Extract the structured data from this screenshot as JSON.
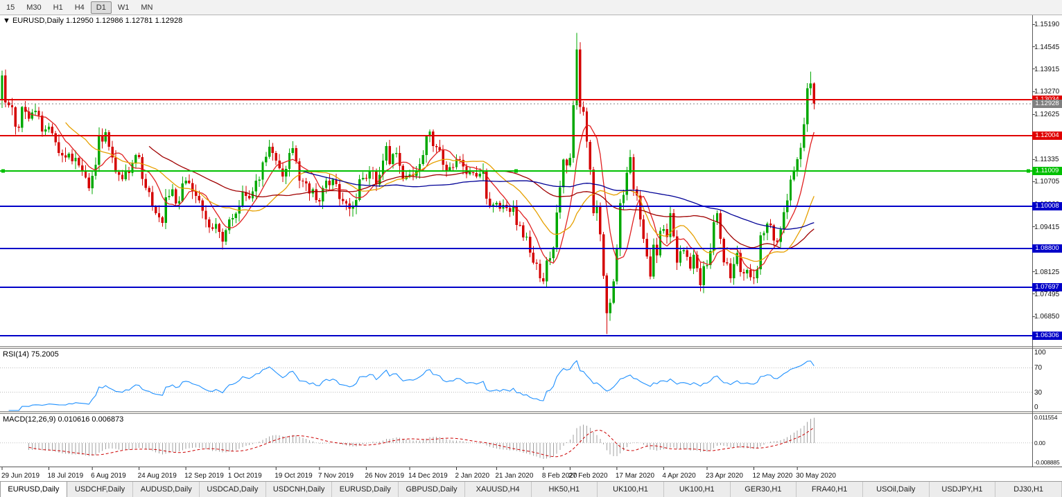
{
  "toolbar": {
    "timeframes": [
      "15",
      "M30",
      "H1",
      "H4",
      "D1",
      "W1",
      "MN"
    ],
    "active": "D1"
  },
  "main_chart": {
    "symbol_marker": "▼",
    "title": "EURUSD,Daily",
    "open": "1.12950",
    "high": "1.12986",
    "low": "1.12781",
    "close": "1.12928",
    "price_axis_ticks": [
      "1.15190",
      "1.14545",
      "1.13915",
      "1.13270",
      "1.12625",
      "1.11980",
      "1.11335",
      "1.10705",
      "1.10060",
      "1.09415",
      "1.08770",
      "1.08125",
      "1.07495",
      "1.06850"
    ],
    "levels": [
      {
        "price": 1.13034,
        "label": "1.13034",
        "color": "#e00000"
      },
      {
        "price": 1.12004,
        "label": "1.12004",
        "color": "#e00000"
      },
      {
        "price": 1.11009,
        "label": "1.11009",
        "color": "#00c000",
        "selected": true
      },
      {
        "price": 1.10008,
        "label": "1.10008",
        "color": "#0000c8"
      },
      {
        "price": 1.088,
        "label": "1.08800",
        "color": "#0000c8"
      },
      {
        "price": 1.07697,
        "label": "1.07697",
        "color": "#0000c8"
      },
      {
        "price": 1.06306,
        "label": "1.06306",
        "color": "#0000c8"
      }
    ],
    "current_price": {
      "price": 1.12928,
      "label": "1.12928",
      "color": "#808080"
    }
  },
  "chart_data": {
    "type": "candlestick",
    "symbol": "EURUSD",
    "timeframe": "Daily",
    "y_range": [
      1.0601,
      1.1545
    ],
    "up_color": "#00a800",
    "down_color": "#d40000",
    "first_open": 1.1305,
    "closes": [
      1.1373,
      1.1296,
      1.1288,
      1.1282,
      1.1227,
      1.1224,
      1.1283,
      1.127,
      1.125,
      1.1268,
      1.1272,
      1.1259,
      1.1213,
      1.1219,
      1.1227,
      1.1208,
      1.1183,
      1.1152,
      1.1145,
      1.1139,
      1.115,
      1.1128,
      1.1138,
      1.1116,
      1.1103,
      1.1082,
      1.1051,
      1.1087,
      1.1118,
      1.1203,
      1.1185,
      1.1211,
      1.117,
      1.1139,
      1.1098,
      1.109,
      1.1077,
      1.11,
      1.1095,
      1.1123,
      1.1146,
      1.114,
      1.1078,
      1.1052,
      1.104,
      1.0999,
      1.098,
      1.0968,
      1.0953,
      1.1026,
      1.103,
      1.1048,
      1.1008,
      1.1015,
      1.1065,
      1.1073,
      1.1066,
      1.1042,
      1.103,
      1.1017,
      1.0987,
      1.0962,
      1.094,
      1.0936,
      1.095,
      1.0927,
      1.0899,
      1.0932,
      1.0962,
      1.0966,
      1.0979,
      1.1,
      1.104,
      1.103,
      1.1023,
      1.1042,
      1.1073,
      1.1076,
      1.1125,
      1.1141,
      1.117,
      1.1152,
      1.113,
      1.1108,
      1.1085,
      1.1107,
      1.1152,
      1.1166,
      1.1128,
      1.1073,
      1.1071,
      1.1065,
      1.1037,
      1.1048,
      1.1018,
      1.1014,
      1.1052,
      1.1073,
      1.106,
      1.1076,
      1.1063,
      1.1021,
      1.1015,
      1.1008,
      1.0993,
      1.1,
      1.1018,
      1.1077,
      1.1081,
      1.1079,
      1.1103,
      1.11,
      1.1062,
      1.109,
      1.113,
      1.1172,
      1.112,
      1.1149,
      1.1152,
      1.1115,
      1.1078,
      1.1087,
      1.1091,
      1.1087,
      1.11,
      1.112,
      1.1146,
      1.1199,
      1.1213,
      1.1172,
      1.1169,
      1.116,
      1.1118,
      1.1103,
      1.1112,
      1.1111,
      1.1134,
      1.1132,
      1.1113,
      1.1092,
      1.1097,
      1.1095,
      1.1085,
      1.1093,
      1.1102,
      1.1022,
      1.1002,
      1.1005,
      1.101,
      1.0993,
      1.1004,
      1.0995,
      1.0984,
      1.1,
      1.0947,
      1.0946,
      1.0911,
      1.0913,
      1.0868,
      1.0839,
      1.0836,
      1.0795,
      1.0786,
      1.0845,
      1.0852,
      1.0882,
      1.0982,
      1.1054,
      1.1133,
      1.1116,
      1.1138,
      1.1288,
      1.1447,
      1.1283,
      1.127,
      1.1184,
      1.1105,
      1.098,
      1.0998,
      1.092,
      1.0802,
      1.0695,
      1.0724,
      1.0786,
      1.088,
      1.1009,
      1.1033,
      1.1096,
      1.114,
      1.1048,
      1.1031,
      1.0962,
      1.0907,
      1.0857,
      1.08,
      1.089,
      1.086,
      1.093,
      1.0935,
      1.0912,
      1.098,
      1.0914,
      1.0839,
      1.0872,
      1.0875,
      1.0856,
      1.0822,
      1.0862,
      1.0823,
      1.0775,
      1.0829,
      1.0832,
      1.0873,
      1.0955,
      1.098,
      1.0907,
      1.084,
      1.0837,
      1.0795,
      1.0835,
      1.0867,
      1.0812,
      1.0808,
      1.0818,
      1.0797,
      1.0795,
      1.082,
      1.0917,
      1.0924,
      1.0951,
      1.0946,
      1.0902,
      1.0898,
      1.0934,
      1.0983,
      1.1017,
      1.1076,
      1.1101,
      1.1134,
      1.1167,
      1.1234,
      1.1337,
      1.135,
      1.1293
    ],
    "wick_overrides": {
      "0": {
        "l": 1.128
      },
      "1": {
        "h": 1.139
      },
      "66": {
        "l": 1.0885
      },
      "162": {
        "l": 1.0778
      },
      "172": {
        "h": 1.1495
      },
      "181": {
        "l": 1.0636
      },
      "182": {
        "l": 1.068
      },
      "242": {
        "h": 1.1384
      },
      "243": {
        "h": 1.1316
      }
    },
    "moving_averages": [
      {
        "period": 8,
        "color": "#e02020"
      },
      {
        "period": 20,
        "color": "#e6a000"
      },
      {
        "period": 45,
        "color": "#a00000"
      },
      {
        "period": 90,
        "color": "#000096"
      }
    ],
    "x_labels": [
      {
        "i": 0,
        "label": "29 Jun 2019"
      },
      {
        "i": 14,
        "label": "18 Jul 2019"
      },
      {
        "i": 27,
        "label": "6 Aug 2019"
      },
      {
        "i": 41,
        "label": "24 Aug 2019"
      },
      {
        "i": 55,
        "label": "12 Sep 2019"
      },
      {
        "i": 68,
        "label": "1 Oct 2019"
      },
      {
        "i": 82,
        "label": "19 Oct 2019"
      },
      {
        "i": 95,
        "label": "7 Nov 2019"
      },
      {
        "i": 109,
        "label": "26 Nov 2019"
      },
      {
        "i": 122,
        "label": "14 Dec 2019"
      },
      {
        "i": 136,
        "label": "2 Jan 2020"
      },
      {
        "i": 148,
        "label": "21 Jan 2020"
      },
      {
        "i": 162,
        "label": "8 Feb 2020"
      },
      {
        "i": 170,
        "label": "27 Feb 2020"
      },
      {
        "i": 184,
        "label": "17 Mar 2020"
      },
      {
        "i": 198,
        "label": "4 Apr 2020"
      },
      {
        "i": 211,
        "label": "23 Apr 2020"
      },
      {
        "i": 225,
        "label": "12 May 2020"
      },
      {
        "i": 238,
        "label": "30 May 2020"
      }
    ]
  },
  "rsi": {
    "title": "RSI(14)",
    "value": "75.2005",
    "period": 14,
    "levels": [
      70,
      30
    ],
    "axis_ticks": [
      {
        "v": 100,
        "label": "100"
      },
      {
        "v": 70,
        "label": "70"
      },
      {
        "v": 30,
        "label": "30"
      },
      {
        "v": 0,
        "label": "0"
      }
    ],
    "range": [
      0,
      100
    ],
    "line_color": "#1e90ff"
  },
  "macd": {
    "title": "MACD(12,26,9)",
    "values": "0.010616 0.006873",
    "fast": 12,
    "slow": 26,
    "signal": 9,
    "axis_ticks": [
      {
        "v": 0.011554,
        "label": "0.011554"
      },
      {
        "v": 0,
        "label": "0.00"
      },
      {
        "v": -0.008885,
        "label": "-0.008885"
      }
    ],
    "range": [
      -0.0105,
      0.0128
    ],
    "hist_color": "#a0a0a0",
    "signal_color": "#cc0000"
  },
  "tabs": {
    "items": [
      "EURUSD,Daily",
      "USDCHF,Daily",
      "AUDUSD,Daily",
      "USDCAD,Daily",
      "USDCNH,Daily",
      "EURUSD,Daily",
      "GBPUSD,Daily",
      "XAUUSD,H4",
      "HK50,H1",
      "UK100,H1",
      "UK100,H1",
      "GER30,H1",
      "FRA40,H1",
      "USOil,Daily",
      "USDJPY,H1",
      "DJ30,H1"
    ],
    "active_index": 0
  }
}
